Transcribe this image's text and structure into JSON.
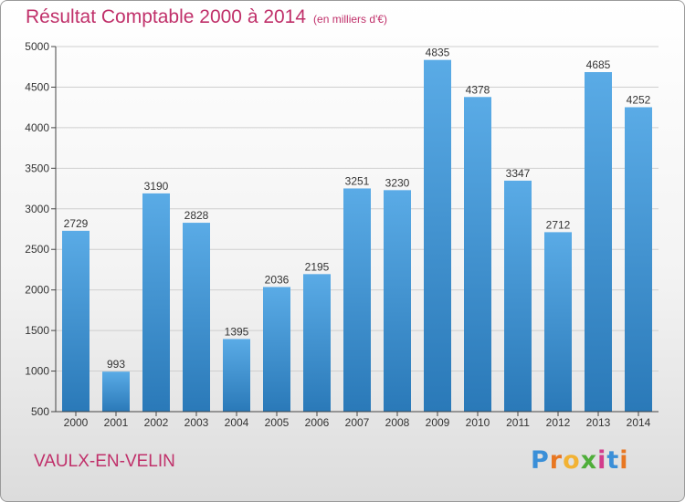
{
  "title": "Résultat Comptable 2000 à 2014",
  "subtitle": "(en milliers d'€)",
  "commune": "VAULX-EN-VELIN",
  "logo": {
    "text": "Proxiti",
    "letters": [
      "P",
      "r",
      "o",
      "x",
      "i",
      "t",
      "i"
    ],
    "colors": [
      "#3a8fd8",
      "#e87722",
      "#f2b233",
      "#4fae3a",
      "#d23c8c",
      "#3a8fd8",
      "#e87722"
    ]
  },
  "colors": {
    "title": "#c0306a",
    "bar_light": "#5aabe6",
    "bar_dark": "#2a79b8",
    "grid": "#cfcfcf",
    "axis": "#444444"
  },
  "chart_data": {
    "type": "bar",
    "categories": [
      "2000",
      "2001",
      "2002",
      "2003",
      "2004",
      "2005",
      "2006",
      "2007",
      "2008",
      "2009",
      "2010",
      "2011",
      "2012",
      "2013",
      "2014"
    ],
    "values": [
      2729,
      993,
      3190,
      2828,
      1395,
      2036,
      2195,
      3251,
      3230,
      4835,
      4378,
      3347,
      2712,
      4685,
      4252
    ],
    "ylim": [
      500,
      5000
    ],
    "yticks": [
      500,
      1000,
      1500,
      2000,
      2500,
      3000,
      3500,
      4000,
      4500,
      5000
    ],
    "grid": true,
    "data_labels": true
  }
}
